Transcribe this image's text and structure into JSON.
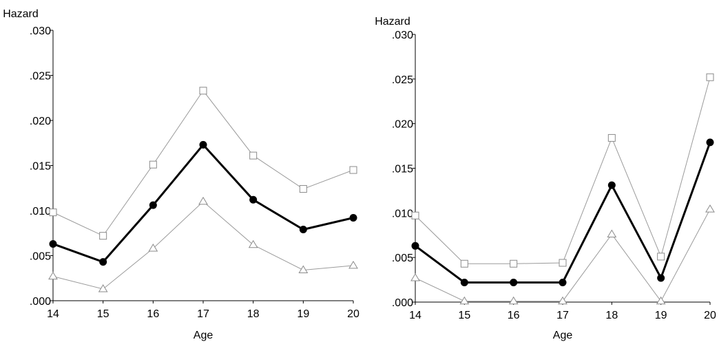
{
  "chart_data": [
    {
      "type": "line",
      "ylabel": "Hazard",
      "xlabel": "Age",
      "x": [
        14,
        15,
        16,
        17,
        18,
        19,
        20
      ],
      "x_tick_labels": [
        "14",
        "15",
        "16",
        "17",
        "18",
        "19",
        "20"
      ],
      "ylim": [
        0,
        0.03
      ],
      "y_tick_labels": [
        ".000",
        ".005",
        ".010",
        ".015",
        ".020",
        ".025",
        ".030"
      ],
      "grid": false,
      "series": [
        {
          "role": "estimate",
          "marker": "filled-circle",
          "line": "thick",
          "values": [
            0.0063,
            0.0043,
            0.0106,
            0.0173,
            0.0112,
            0.0079,
            0.0092
          ]
        },
        {
          "role": "upper-bound",
          "marker": "open-square",
          "line": "thin",
          "values": [
            0.0098,
            0.0072,
            0.0151,
            0.0233,
            0.0161,
            0.0124,
            0.0145
          ]
        },
        {
          "role": "lower-bound",
          "marker": "open-triangle",
          "line": "thin",
          "values": [
            0.0027,
            0.0013,
            0.0058,
            0.011,
            0.0062,
            0.0034,
            0.0039
          ]
        }
      ]
    },
    {
      "type": "line",
      "ylabel": "Hazard",
      "xlabel": "Age",
      "x": [
        14,
        15,
        16,
        17,
        18,
        19,
        20
      ],
      "x_tick_labels": [
        "14",
        "15",
        "16",
        "17",
        "18",
        "19",
        "20"
      ],
      "ylim": [
        0,
        0.03
      ],
      "y_tick_labels": [
        ".000",
        ".005",
        ".010",
        ".015",
        ".020",
        ".025",
        ".030"
      ],
      "grid": false,
      "series": [
        {
          "role": "estimate",
          "marker": "filled-circle",
          "line": "thick",
          "values": [
            0.0063,
            0.0022,
            0.0022,
            0.0022,
            0.0131,
            0.0027,
            0.0179
          ]
        },
        {
          "role": "upper-bound",
          "marker": "open-square",
          "line": "thin",
          "values": [
            0.0097,
            0.0043,
            0.0043,
            0.0044,
            0.0184,
            0.0051,
            0.0252
          ]
        },
        {
          "role": "lower-bound",
          "marker": "open-triangle",
          "line": "thin",
          "values": [
            0.0027,
            0.0001,
            0.0001,
            0.0001,
            0.0076,
            0.0001,
            0.0104
          ]
        }
      ]
    }
  ]
}
